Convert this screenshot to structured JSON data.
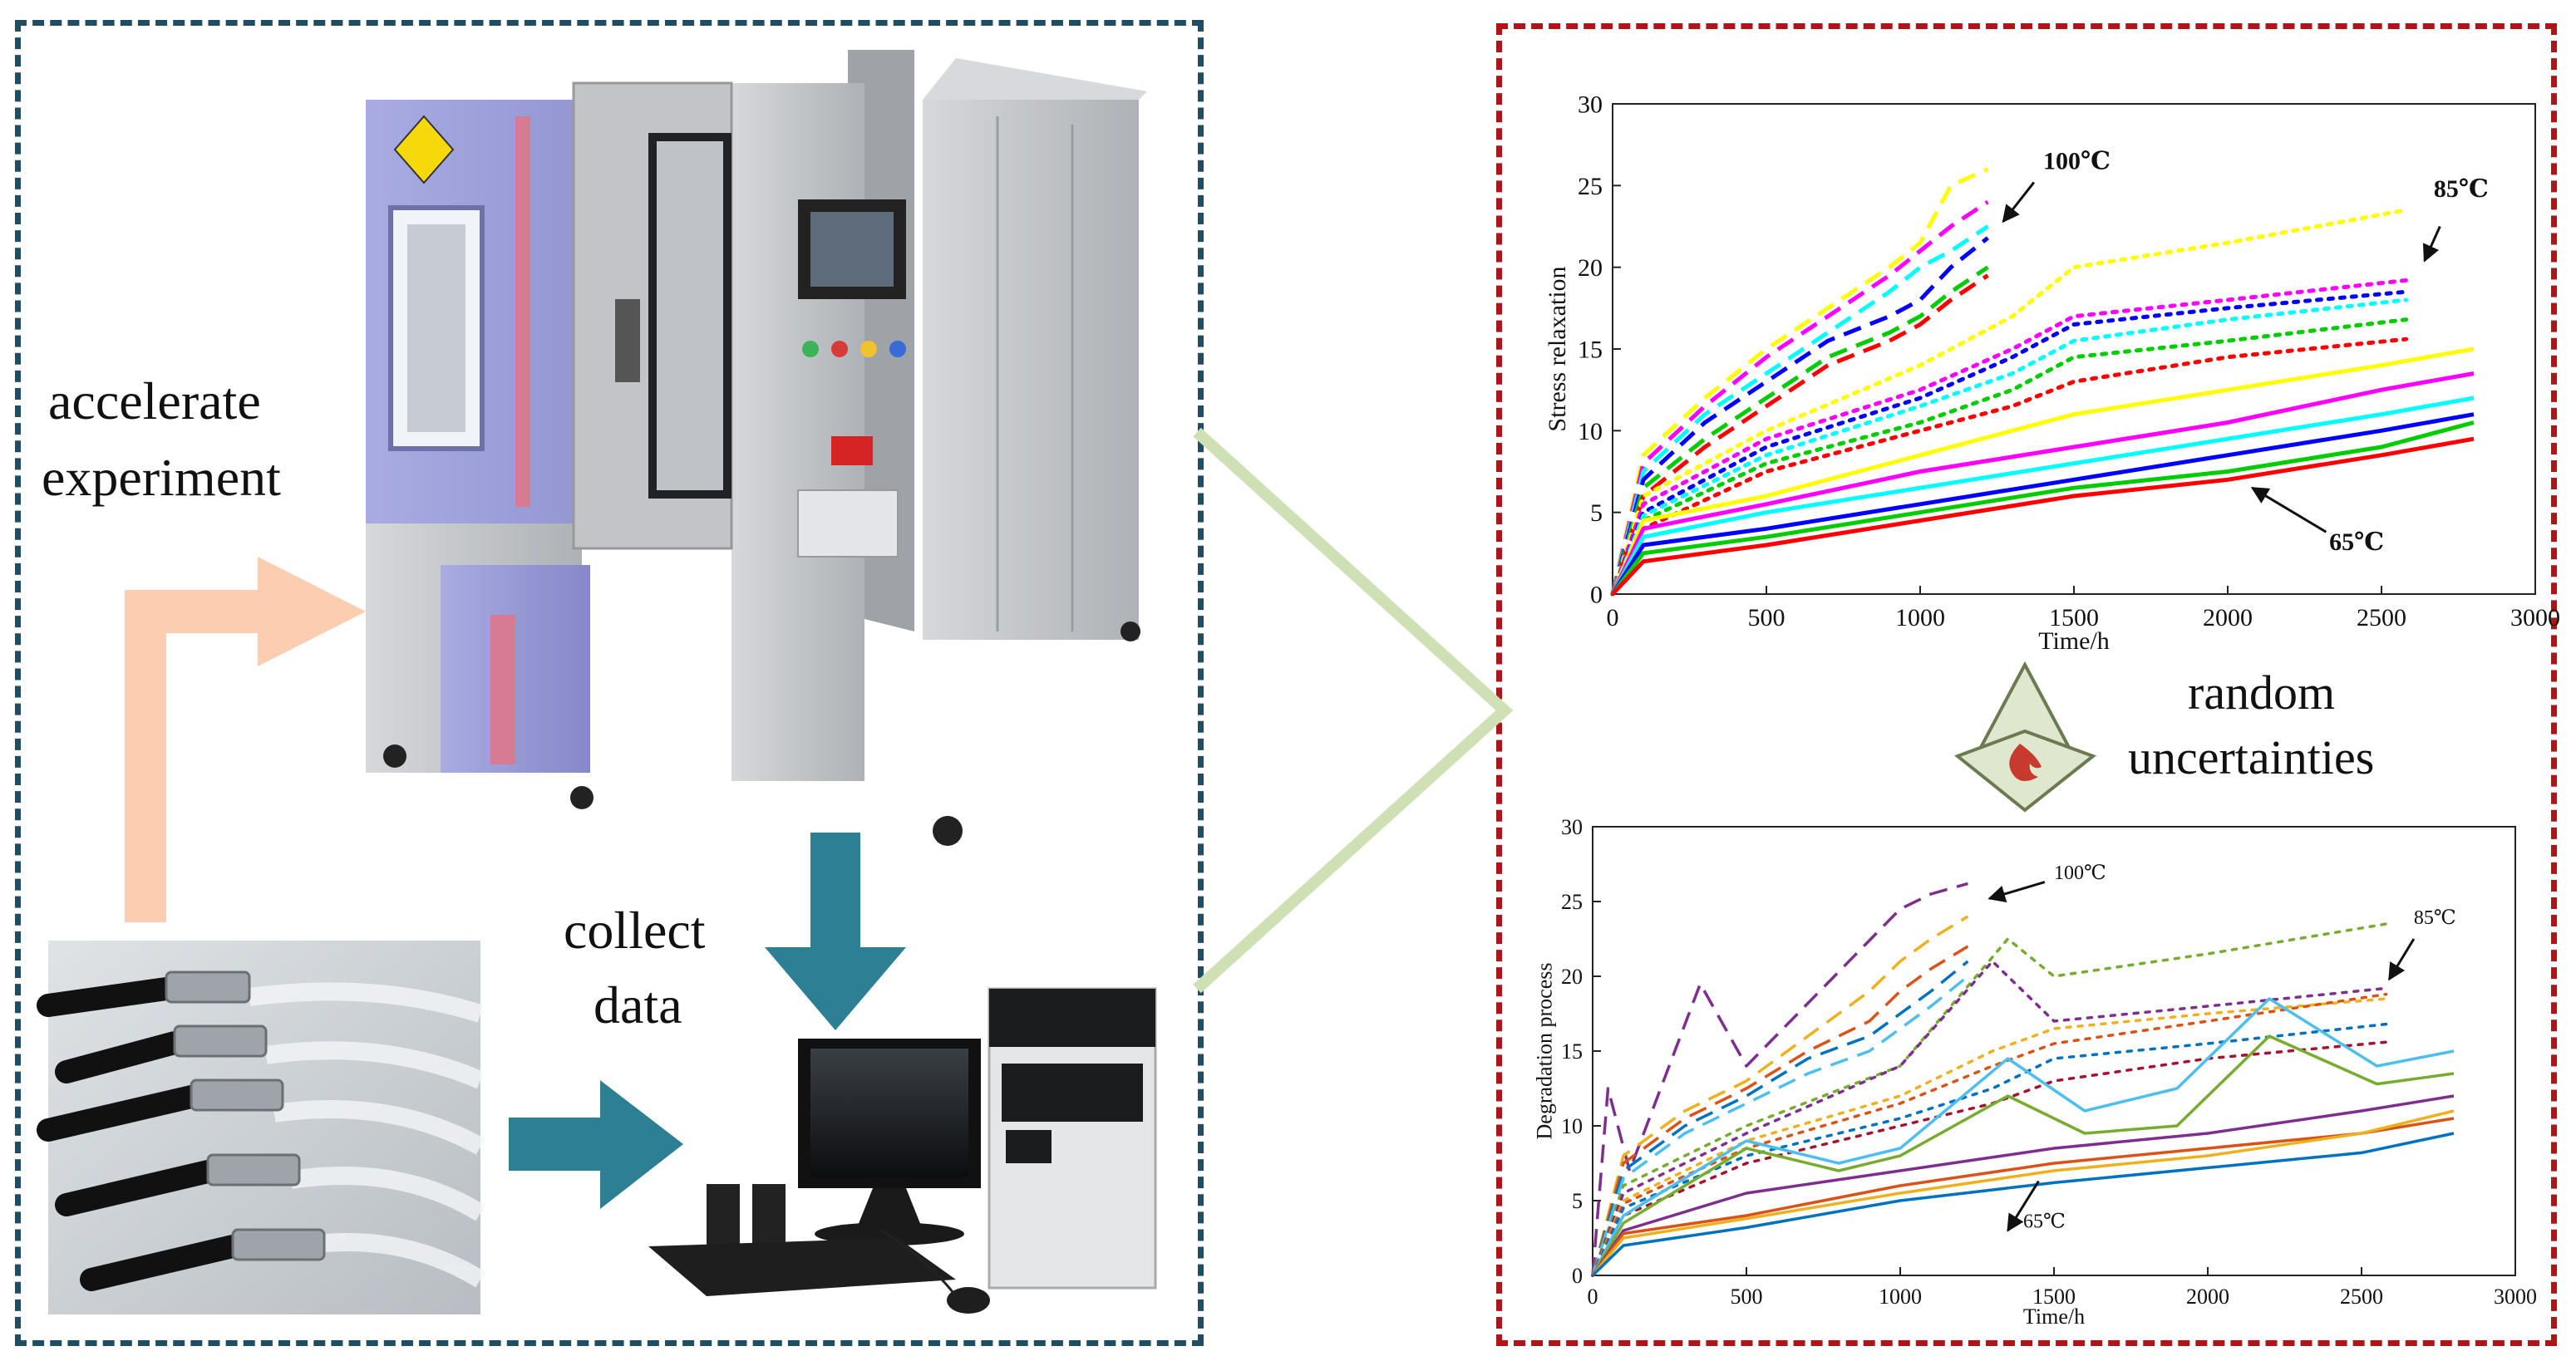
{
  "left": {
    "accelerate_label": "accelerate",
    "experiment_label": "experiment",
    "collect_label": "collect",
    "data_label": "data"
  },
  "middle": {
    "random_label": "random",
    "uncertainties_label": "uncertainties"
  },
  "colors": {
    "left_border": "#1f4e63",
    "right_border": "#b01318",
    "arrow_teal": "#2d7f93",
    "arrow_peach": "#fccdb0",
    "connector": "#cfe0b5",
    "chamber_purple": "#9c9ed9",
    "chamber_gray": "#c9cbcf"
  },
  "chart_data": [
    {
      "type": "line",
      "xlabel": "Time/h",
      "ylabel": "Stress relaxation",
      "xlim": [
        0,
        3000
      ],
      "ylim": [
        0,
        30
      ],
      "xticks": [
        0,
        500,
        1000,
        1500,
        2000,
        2500,
        3000
      ],
      "yticks": [
        0,
        5,
        10,
        15,
        20,
        25,
        30
      ],
      "annotations": [
        {
          "text": "100℃",
          "x": 1400,
          "y": 26
        },
        {
          "text": "85℃",
          "x": 2670,
          "y": 24.3
        },
        {
          "text": "65℃",
          "x": 2330,
          "y": 2.7
        }
      ],
      "series": [
        {
          "group": "100",
          "style": "dashed",
          "color": "#ffff00",
          "x": [
            0,
            100,
            300,
            500,
            700,
            900,
            1000,
            1100,
            1220
          ],
          "y": [
            0,
            8.5,
            12,
            15,
            17.5,
            20,
            21.5,
            25,
            26
          ]
        },
        {
          "group": "100",
          "style": "dashed",
          "color": "#ff00ff",
          "x": [
            0,
            100,
            300,
            500,
            700,
            900,
            1000,
            1100,
            1220
          ],
          "y": [
            0,
            8,
            11.5,
            14.5,
            17,
            19.5,
            21,
            22.5,
            24
          ]
        },
        {
          "group": "100",
          "style": "dashed",
          "color": "#00ffff",
          "x": [
            0,
            100,
            300,
            500,
            700,
            900,
            1000,
            1100,
            1220
          ],
          "y": [
            0,
            7.5,
            11,
            13.5,
            16,
            18.5,
            20,
            21,
            22.5
          ]
        },
        {
          "group": "100",
          "style": "dashed",
          "color": "#0000ff",
          "x": [
            0,
            100,
            300,
            500,
            700,
            900,
            1000,
            1100,
            1220
          ],
          "y": [
            0,
            7,
            10.5,
            13,
            15.5,
            17,
            18,
            20,
            21.8
          ]
        },
        {
          "group": "100",
          "style": "dashed",
          "color": "#00cc00",
          "x": [
            0,
            100,
            300,
            500,
            700,
            900,
            1000,
            1100,
            1220
          ],
          "y": [
            0,
            6.5,
            9.5,
            12,
            14.5,
            16,
            17,
            18.5,
            20
          ]
        },
        {
          "group": "100",
          "style": "dashed",
          "color": "#ff0000",
          "x": [
            0,
            100,
            300,
            500,
            700,
            900,
            1000,
            1100,
            1220
          ],
          "y": [
            0,
            6,
            9,
            11.5,
            14,
            15.5,
            16.5,
            18,
            19.5
          ]
        },
        {
          "group": "85",
          "style": "dotted",
          "color": "#ffff00",
          "x": [
            0,
            100,
            500,
            1000,
            1300,
            1500,
            2000,
            2580
          ],
          "y": [
            0,
            6,
            10,
            14,
            17,
            20,
            21.5,
            23.5
          ]
        },
        {
          "group": "85",
          "style": "dotted",
          "color": "#ff00ff",
          "x": [
            0,
            100,
            500,
            1000,
            1300,
            1500,
            2000,
            2580
          ],
          "y": [
            0,
            5.5,
            9.5,
            12.5,
            15,
            17,
            18,
            19.2
          ]
        },
        {
          "group": "85",
          "style": "dotted",
          "color": "#0000ff",
          "x": [
            0,
            100,
            500,
            1000,
            1300,
            1500,
            2000,
            2580
          ],
          "y": [
            0,
            5,
            9,
            12,
            14.5,
            16.5,
            17.5,
            18.5
          ]
        },
        {
          "group": "85",
          "style": "dotted",
          "color": "#00ffff",
          "x": [
            0,
            100,
            500,
            1000,
            1300,
            1500,
            2000,
            2580
          ],
          "y": [
            0,
            4.8,
            8.5,
            11.5,
            13.5,
            15.5,
            16.8,
            18
          ]
        },
        {
          "group": "85",
          "style": "dotted",
          "color": "#00cc00",
          "x": [
            0,
            100,
            500,
            1000,
            1300,
            1500,
            2000,
            2580
          ],
          "y": [
            0,
            4.5,
            8,
            10.5,
            12.5,
            14.5,
            15.5,
            16.8
          ]
        },
        {
          "group": "85",
          "style": "dotted",
          "color": "#ff0000",
          "x": [
            0,
            100,
            500,
            1000,
            1300,
            1500,
            2000,
            2580
          ],
          "y": [
            0,
            4,
            7.5,
            10,
            11.5,
            13,
            14.5,
            15.6
          ]
        },
        {
          "group": "65",
          "style": "solid",
          "color": "#ffff00",
          "x": [
            0,
            100,
            500,
            1000,
            1500,
            2000,
            2500,
            2800
          ],
          "y": [
            0,
            4.5,
            6,
            8.5,
            11,
            12.5,
            14,
            15
          ]
        },
        {
          "group": "65",
          "style": "solid",
          "color": "#ff00ff",
          "x": [
            0,
            100,
            500,
            1000,
            1500,
            2000,
            2500,
            2800
          ],
          "y": [
            0,
            4,
            5.5,
            7.5,
            9,
            10.5,
            12.5,
            13.5
          ]
        },
        {
          "group": "65",
          "style": "solid",
          "color": "#00ffff",
          "x": [
            0,
            100,
            500,
            1000,
            1500,
            2000,
            2500,
            2800
          ],
          "y": [
            0,
            3.5,
            5,
            6.5,
            8,
            9.5,
            11,
            12
          ]
        },
        {
          "group": "65",
          "style": "solid",
          "color": "#0000ff",
          "x": [
            0,
            100,
            500,
            1000,
            1500,
            2000,
            2500,
            2800
          ],
          "y": [
            0,
            3,
            4,
            5.5,
            7,
            8.5,
            10,
            11
          ]
        },
        {
          "group": "65",
          "style": "solid",
          "color": "#00cc00",
          "x": [
            0,
            100,
            500,
            1000,
            1500,
            2000,
            2500,
            2800
          ],
          "y": [
            0,
            2.5,
            3.5,
            5,
            6.5,
            7.5,
            9,
            10.5
          ]
        },
        {
          "group": "65",
          "style": "solid",
          "color": "#ff0000",
          "x": [
            0,
            100,
            500,
            1000,
            1500,
            2000,
            2500,
            2800
          ],
          "y": [
            0,
            2,
            3,
            4.5,
            6,
            7,
            8.5,
            9.5
          ]
        }
      ]
    },
    {
      "type": "line",
      "xlabel": "Time/h",
      "ylabel": "Degradation process",
      "xlim": [
        0,
        3000
      ],
      "ylim": [
        0,
        30
      ],
      "xticks": [
        0,
        500,
        1000,
        1500,
        2000,
        2500,
        3000
      ],
      "yticks": [
        0,
        5,
        10,
        15,
        20,
        25,
        30
      ],
      "annotations": [
        {
          "text": "100℃",
          "x": 1500,
          "y": 26.5
        },
        {
          "text": "85℃",
          "x": 2670,
          "y": 23.5
        },
        {
          "text": "65℃",
          "x": 1400,
          "y": 3.2
        }
      ],
      "series": [
        {
          "group": "100",
          "style": "dashed",
          "color": "#7e2f8e",
          "x": [
            0,
            50,
            120,
            350,
            500,
            1000,
            1100,
            1220
          ],
          "y": [
            0,
            12.5,
            7,
            19.5,
            14,
            24.5,
            25.5,
            26.2
          ]
        },
        {
          "group": "100",
          "style": "dashed",
          "color": "#edb120",
          "x": [
            0,
            100,
            300,
            500,
            700,
            900,
            1000,
            1100,
            1220
          ],
          "y": [
            0,
            8,
            11,
            13,
            16,
            19,
            21,
            22.5,
            24
          ]
        },
        {
          "group": "100",
          "style": "dashed",
          "color": "#d95319",
          "x": [
            0,
            100,
            300,
            500,
            700,
            900,
            1000,
            1100,
            1220
          ],
          "y": [
            0,
            7.5,
            10.5,
            12.5,
            15,
            17,
            19,
            20.5,
            22
          ]
        },
        {
          "group": "100",
          "style": "dashed",
          "color": "#0072bd",
          "x": [
            0,
            100,
            300,
            500,
            700,
            900,
            1000,
            1100,
            1220
          ],
          "y": [
            0,
            7,
            10,
            12,
            14.5,
            16,
            17.5,
            19,
            21
          ]
        },
        {
          "group": "100",
          "style": "dashed",
          "color": "#4dbeee",
          "x": [
            0,
            100,
            300,
            500,
            700,
            900,
            1000,
            1100,
            1220
          ],
          "y": [
            0,
            6.5,
            9.5,
            11.5,
            13.5,
            15,
            16.5,
            18,
            20
          ]
        },
        {
          "group": "85",
          "style": "dotted",
          "color": "#77ac30",
          "x": [
            0,
            100,
            500,
            1000,
            1350,
            1500,
            2000,
            2580
          ],
          "y": [
            0,
            6,
            10,
            14,
            22.5,
            20,
            21.5,
            23.5
          ]
        },
        {
          "group": "85",
          "style": "dotted",
          "color": "#7e2f8e",
          "x": [
            0,
            100,
            500,
            1000,
            1300,
            1500,
            2000,
            2580
          ],
          "y": [
            0,
            5.5,
            9.5,
            14,
            21,
            17,
            18,
            19.2
          ]
        },
        {
          "group": "85",
          "style": "dotted",
          "color": "#edb120",
          "x": [
            0,
            100,
            500,
            1000,
            1300,
            1500,
            2000,
            2580
          ],
          "y": [
            0,
            5,
            9,
            12,
            15,
            16.5,
            17.5,
            18.5
          ]
        },
        {
          "group": "85",
          "style": "dotted",
          "color": "#d95319",
          "x": [
            0,
            100,
            500,
            1000,
            1300,
            1500,
            2000,
            2580
          ],
          "y": [
            0,
            4.8,
            8.5,
            11.5,
            14,
            15.5,
            17,
            18.8
          ]
        },
        {
          "group": "85",
          "style": "dotted",
          "color": "#0072bd",
          "x": [
            0,
            100,
            500,
            1000,
            1300,
            1500,
            2000,
            2580
          ],
          "y": [
            0,
            4.5,
            8,
            10.5,
            12.5,
            14.5,
            15.5,
            16.8
          ]
        },
        {
          "group": "85",
          "style": "dotted",
          "color": "#a2142f",
          "x": [
            0,
            100,
            500,
            1000,
            1300,
            1500,
            2000,
            2580
          ],
          "y": [
            0,
            4,
            7.5,
            10,
            11.5,
            13,
            14.5,
            15.6
          ]
        },
        {
          "group": "65",
          "style": "solid",
          "color": "#4dbeee",
          "x": [
            0,
            100,
            500,
            800,
            1000,
            1350,
            1600,
            1900,
            2200,
            2550,
            2800
          ],
          "y": [
            0,
            4,
            9,
            7.5,
            8.5,
            14.5,
            11,
            12.5,
            18.5,
            14,
            15
          ]
        },
        {
          "group": "65",
          "style": "solid",
          "color": "#77ac30",
          "x": [
            0,
            100,
            500,
            800,
            1000,
            1350,
            1600,
            1900,
            2200,
            2550,
            2800
          ],
          "y": [
            0,
            3.5,
            8.5,
            7,
            8,
            12,
            9.5,
            10,
            16,
            12.8,
            13.5
          ]
        },
        {
          "group": "65",
          "style": "solid",
          "color": "#7e2f8e",
          "x": [
            0,
            100,
            500,
            1000,
            1500,
            2000,
            2500,
            2800
          ],
          "y": [
            0,
            3,
            5.5,
            7,
            8.5,
            9.5,
            11,
            12
          ]
        },
        {
          "group": "65",
          "style": "solid",
          "color": "#d95319",
          "x": [
            0,
            100,
            500,
            1000,
            1500,
            2000,
            2500,
            2800
          ],
          "y": [
            0,
            2.8,
            4,
            6,
            7.5,
            8.5,
            9.5,
            10.5
          ]
        },
        {
          "group": "65",
          "style": "solid",
          "color": "#edb120",
          "x": [
            0,
            100,
            500,
            1000,
            1500,
            2000,
            2500,
            2800
          ],
          "y": [
            0,
            2.5,
            3.8,
            5.5,
            7,
            8,
            9.5,
            11
          ]
        },
        {
          "group": "65",
          "style": "solid",
          "color": "#0072bd",
          "x": [
            0,
            100,
            500,
            1000,
            1500,
            2000,
            2500,
            2800
          ],
          "y": [
            0,
            2,
            3.2,
            5,
            6.2,
            7.2,
            8.2,
            9.5
          ]
        }
      ]
    }
  ]
}
